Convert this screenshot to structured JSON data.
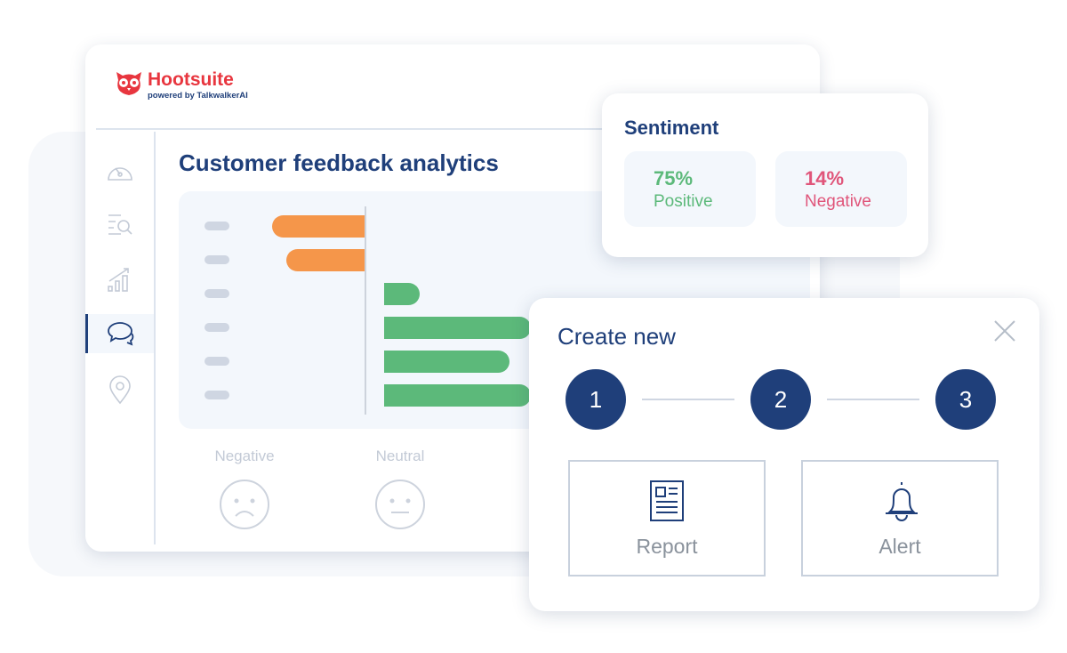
{
  "brand": {
    "name": "Hootsuite",
    "registered": "®",
    "tagline": "powered by TalkwalkerAI",
    "color": "#e8363f"
  },
  "sidebar": {
    "items": [
      {
        "icon": "gauge-icon"
      },
      {
        "icon": "list-search-icon"
      },
      {
        "icon": "bar-chart-icon"
      },
      {
        "icon": "chat-bubbles-icon",
        "active": true
      },
      {
        "icon": "location-pin-icon"
      }
    ]
  },
  "main": {
    "title": "Customer feedback analytics",
    "faces": [
      {
        "label": "Negative",
        "icon": "sad-face-icon"
      },
      {
        "label": "Neutral",
        "icon": "neutral-face-icon"
      }
    ]
  },
  "chart_data": {
    "type": "bar",
    "orientation": "horizontal",
    "colors": {
      "negative": "#f5964a",
      "positive": "#5cb97a"
    },
    "note_labels_hidden": true,
    "values": [
      -105,
      -89,
      40,
      165,
      141,
      165
    ]
  },
  "sentiment": {
    "title": "Sentiment",
    "positive": {
      "value": "75%",
      "label": "Positive",
      "color": "#5cb97a"
    },
    "negative": {
      "value": "14%",
      "label": "Negative",
      "color": "#e0557a"
    }
  },
  "create": {
    "title": "Create new",
    "steps": [
      "1",
      "2",
      "3"
    ],
    "options": [
      {
        "label": "Report",
        "icon": "report-icon"
      },
      {
        "label": "Alert",
        "icon": "bell-icon"
      }
    ]
  }
}
